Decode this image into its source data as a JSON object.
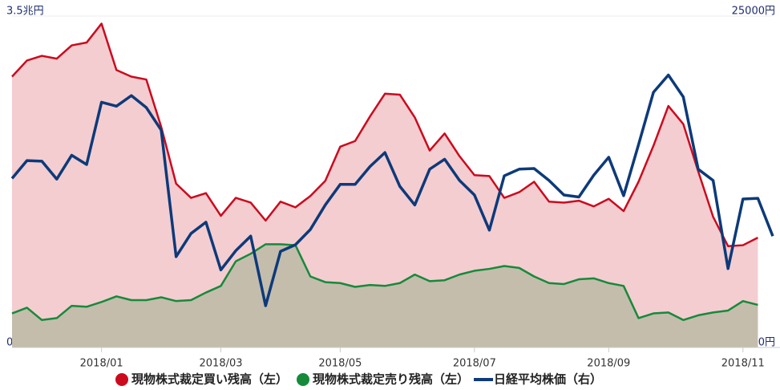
{
  "chart_data": {
    "type": "line",
    "categories": [
      null,
      null,
      null,
      null,
      null,
      null,
      "2018/01",
      null,
      null,
      null,
      null,
      null,
      null,
      null,
      "2018/03",
      null,
      null,
      null,
      null,
      null,
      null,
      null,
      "2018/05",
      null,
      null,
      null,
      null,
      null,
      null,
      null,
      null,
      "2018/07",
      null,
      null,
      null,
      null,
      null,
      null,
      null,
      null,
      "2018/09",
      null,
      null,
      null,
      null,
      null,
      null,
      null,
      null,
      "2018/11",
      null,
      null
    ],
    "series": [
      {
        "name": "現物株式裁定買い残高（左）",
        "color": "#cc0a1e",
        "area_color": "#f4cdd0",
        "area": true,
        "values": [
          2.86,
          3.03,
          3.08,
          3.05,
          3.19,
          3.22,
          3.42,
          2.93,
          2.86,
          2.83,
          2.33,
          1.73,
          1.58,
          1.63,
          1.39,
          1.58,
          1.53,
          1.34,
          1.54,
          1.48,
          1.6,
          1.76,
          2.12,
          2.18,
          2.44,
          2.68,
          2.67,
          2.43,
          2.08,
          2.26,
          2.02,
          1.82,
          1.81,
          1.58,
          1.64,
          1.75,
          1.54,
          1.53,
          1.55,
          1.49,
          1.57,
          1.44,
          1.75,
          2.13,
          2.55,
          2.36,
          1.86,
          1.38,
          1.07,
          1.08,
          1.16,
          null
        ]
      },
      {
        "name": "現物株式裁定売り残高（左）",
        "color": "#168a3a",
        "area_color": "#c4bdac",
        "area": true,
        "values": [
          0.36,
          0.42,
          0.29,
          0.31,
          0.44,
          0.43,
          0.48,
          0.54,
          0.5,
          0.5,
          0.53,
          0.49,
          0.5,
          0.58,
          0.65,
          0.91,
          0.99,
          1.09,
          1.09,
          1.08,
          0.75,
          0.69,
          0.68,
          0.64,
          0.66,
          0.65,
          0.68,
          0.77,
          0.7,
          0.71,
          0.77,
          0.81,
          0.83,
          0.86,
          0.84,
          0.75,
          0.68,
          0.67,
          0.72,
          0.73,
          0.68,
          0.65,
          0.31,
          0.36,
          0.37,
          0.29,
          0.34,
          0.37,
          0.39,
          0.49,
          0.45,
          null
        ]
      },
      {
        "name": "日経平均株価（右）",
        "color": "#0d3a7a",
        "axis": "y2",
        "values": [
          22550,
          22820,
          22810,
          22540,
          22900,
          22760,
          23700,
          23640,
          23800,
          23620,
          23280,
          21370,
          21720,
          21890,
          21170,
          21460,
          21680,
          20630,
          21450,
          21550,
          21780,
          22150,
          22460,
          22460,
          22730,
          22940,
          22430,
          22150,
          22690,
          22840,
          22520,
          22300,
          21770,
          22590,
          22690,
          22700,
          22520,
          22300,
          22270,
          22600,
          22870,
          22290,
          23060,
          23850,
          24110,
          23780,
          22690,
          22520,
          21190,
          22240,
          22250,
          21680
        ]
      }
    ],
    "ylim": [
      0,
      3.5
    ],
    "yticks": [
      {
        "value": 0,
        "label": "0兆円"
      },
      {
        "value": 3.5,
        "label": "3.5兆円"
      }
    ],
    "y2lim": [
      20000,
      25000
    ],
    "y2ticks": [
      {
        "value": 20000,
        "label": "20000円"
      },
      {
        "value": 25000,
        "label": "25000円"
      }
    ],
    "legend": "bottom"
  }
}
